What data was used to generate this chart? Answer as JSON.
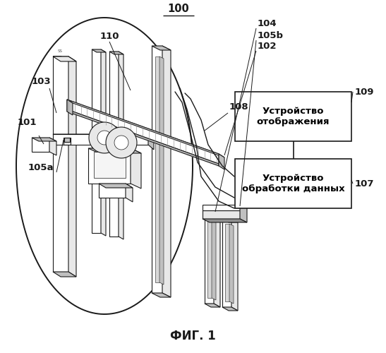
{
  "title": "ФИГ. 1",
  "label_100": "100",
  "label_101": "101",
  "label_102": "102",
  "label_103": "103",
  "label_104": "104",
  "label_105a": "105a",
  "label_105b": "105b",
  "label_107": "107",
  "label_108": "108",
  "label_109": "109",
  "label_110": "110",
  "box1_text": "Устройство\nотображения",
  "box2_text": "Устройство\nобработки данных",
  "bg_color": "#ffffff",
  "line_color": "#1a1a1a",
  "fill_white": "#ffffff",
  "fill_light": "#e8e8e8",
  "fill_mid": "#c0c0c0",
  "fill_dark": "#909090",
  "fill_darker": "#707070",
  "box_fill": "#ffffff"
}
